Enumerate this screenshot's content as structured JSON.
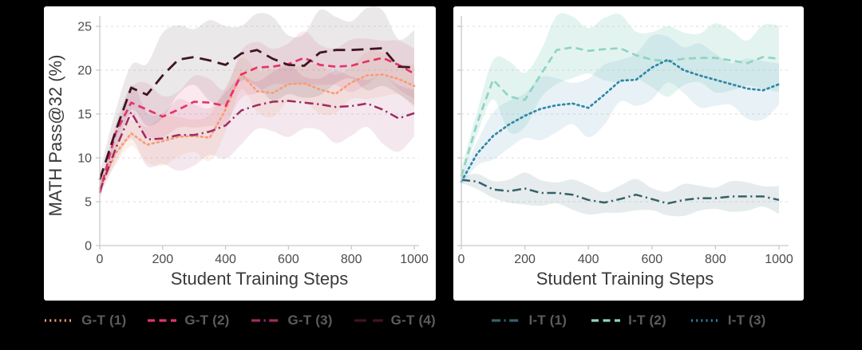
{
  "figure": {
    "background": "#000000",
    "panel_background": "#ffffff",
    "y_axis_label": "MATH Pass@32 (%)",
    "x_axis_label": "Student Training Steps"
  },
  "chart_data": [
    {
      "type": "line",
      "panel": "left",
      "xlabel": "Student Training Steps",
      "ylabel": "MATH Pass@32 (%)",
      "x": [
        0,
        50,
        100,
        150,
        200,
        250,
        300,
        350,
        400,
        450,
        500,
        550,
        600,
        650,
        700,
        750,
        800,
        850,
        900,
        950,
        1000
      ],
      "xticks": [
        0,
        200,
        400,
        600,
        800,
        1000
      ],
      "yticks": [
        0,
        5,
        10,
        15,
        20,
        25
      ],
      "ylim": [
        0,
        27
      ],
      "grid": true,
      "legend_position": "below",
      "series": [
        {
          "name": "G-T (1)",
          "color": "#F59E78",
          "dash": "dotted",
          "band_color": "#F5A97F",
          "band_opacity": 0.16,
          "band": 2.3,
          "values": [
            6.5,
            10.5,
            12.8,
            11.5,
            11.9,
            12.4,
            12.5,
            12.3,
            15.5,
            19.6,
            17.6,
            17.4,
            18.4,
            18.5,
            17.8,
            17.3,
            18.6,
            19.4,
            19.5,
            19.0,
            18.2
          ]
        },
        {
          "name": "G-T (2)",
          "color": "#E73269",
          "dash": "dashed",
          "band_color": "#E8638C",
          "band_opacity": 0.14,
          "band": 2.5,
          "values": [
            6.0,
            12.8,
            16.3,
            15.5,
            14.7,
            15.5,
            16.4,
            16.3,
            15.9,
            19.5,
            20.3,
            20.4,
            20.7,
            21.4,
            20.6,
            20.4,
            20.5,
            21.0,
            21.4,
            20.6,
            19.6
          ]
        },
        {
          "name": "G-T (3)",
          "color": "#9E2B63",
          "dash": "dashdot",
          "band_color": "#B05C88",
          "band_opacity": 0.14,
          "band": 3.4,
          "values": [
            6.2,
            11.0,
            15.2,
            12.1,
            12.2,
            12.6,
            12.6,
            13.0,
            13.7,
            15.4,
            16.0,
            16.4,
            16.5,
            16.3,
            16.1,
            15.8,
            15.9,
            16.2,
            15.5,
            14.5,
            15.1
          ]
        },
        {
          "name": "G-T (4)",
          "color": "#3E1423",
          "dash": "longdash",
          "band_color": "#5F4A56",
          "band_opacity": 0.13,
          "band": 4.0,
          "values": [
            7.5,
            13.0,
            18.0,
            17.2,
            19.4,
            21.2,
            21.5,
            21.1,
            20.6,
            21.9,
            22.3,
            21.3,
            20.6,
            20.5,
            22.0,
            22.3,
            22.3,
            22.4,
            22.5,
            20.4,
            20.3
          ]
        }
      ]
    },
    {
      "type": "line",
      "panel": "right",
      "xlabel": "Student Training Steps",
      "ylabel": "",
      "x": [
        0,
        50,
        100,
        150,
        200,
        250,
        300,
        350,
        400,
        450,
        500,
        550,
        600,
        650,
        700,
        750,
        800,
        850,
        900,
        950,
        1000
      ],
      "xticks": [
        0,
        200,
        400,
        600,
        800,
        1000
      ],
      "yticks": [
        0,
        5,
        10,
        15,
        20,
        25
      ],
      "ylim": [
        0,
        27
      ],
      "grid": true,
      "legend_position": "below",
      "series": [
        {
          "name": "I-T (1)",
          "color": "#35616B",
          "dash": "dashdot",
          "band_color": "#35616B",
          "band_opacity": 0.12,
          "band": 1.5,
          "values": [
            7.5,
            7.3,
            6.4,
            6.2,
            6.5,
            6.0,
            6.0,
            5.8,
            5.2,
            4.9,
            5.3,
            5.8,
            5.3,
            4.8,
            5.2,
            5.4,
            5.4,
            5.6,
            5.6,
            5.6,
            5.2
          ]
        },
        {
          "name": "I-T (2)",
          "color": "#8FD4C3",
          "dash": "dashed",
          "band_color": "#8FD4C3",
          "band_opacity": 0.25,
          "band": 3.3,
          "values": [
            7.9,
            14.0,
            18.9,
            17.0,
            16.6,
            19.5,
            22.3,
            22.6,
            22.2,
            22.4,
            22.5,
            21.7,
            21.2,
            21.0,
            21.3,
            21.4,
            21.4,
            21.1,
            20.8,
            21.5,
            21.3
          ]
        },
        {
          "name": "I-T (3)",
          "color": "#2F86A8",
          "dash": "dotted",
          "band_color": "#5FA5BC",
          "band_opacity": 0.14,
          "band": 3.0,
          "values": [
            7.3,
            10.5,
            12.5,
            13.8,
            14.8,
            15.6,
            16.0,
            16.2,
            15.7,
            17.2,
            18.8,
            18.9,
            20.3,
            21.2,
            20.0,
            19.4,
            18.9,
            18.4,
            17.9,
            17.7,
            18.4
          ]
        }
      ]
    }
  ],
  "style": {
    "grid_color": "#dedede",
    "spine_color": "#c9c9c9",
    "tick_label_color": "#4c4c4c",
    "axis_label_color": "#3a3a3a",
    "legend_text_color": "#5c5c5c"
  }
}
